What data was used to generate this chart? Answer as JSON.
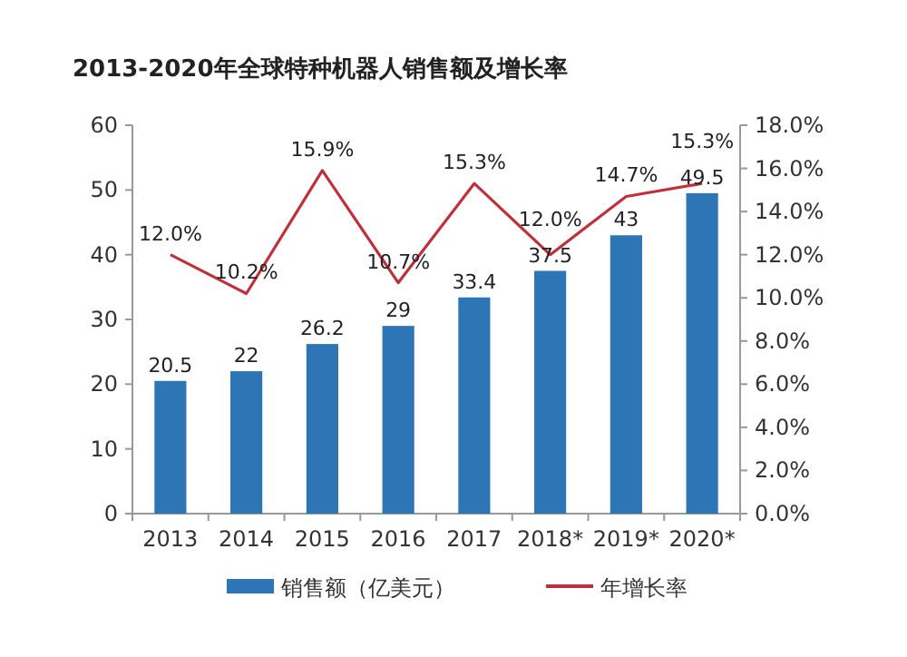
{
  "chart_data": {
    "type": "bar",
    "title": "2013-2020年全球特种机器人销售额及增长率",
    "categories": [
      "2013",
      "2014",
      "2015",
      "2016",
      "2017",
      "2018*",
      "2019*",
      "2020*"
    ],
    "series": [
      {
        "name": "销售额（亿美元）",
        "color": "#2e75b6",
        "values": [
          20.5,
          22,
          26.2,
          29,
          33.4,
          37.5,
          43,
          49.5
        ],
        "value_labels": [
          "20.5",
          "22",
          "26.2",
          "29",
          "33.4",
          "37.5",
          "43",
          "49.5"
        ]
      },
      {
        "name": "年增长率",
        "type": "line",
        "axis": "y2",
        "color": "#c0303a",
        "values": [
          12.0,
          10.2,
          15.9,
          10.7,
          15.3,
          12.0,
          14.7,
          15.3
        ],
        "value_labels": [
          "12.0%",
          "10.2%",
          "15.9%",
          "10.7%",
          "15.3%",
          "12.0%",
          "14.7%",
          "15.3%"
        ]
      }
    ],
    "ylim": [
      0,
      60
    ],
    "yticks": [
      0,
      10,
      20,
      30,
      40,
      50,
      60
    ],
    "y2lim": [
      0,
      18
    ],
    "y2ticks": [
      {
        "value": 0,
        "label": "0.0%"
      },
      {
        "value": 2,
        "label": "2.0%"
      },
      {
        "value": 4,
        "label": "4.0%"
      },
      {
        "value": 6,
        "label": "6.0%"
      },
      {
        "value": 8,
        "label": "8.0%"
      },
      {
        "value": 10,
        "label": "10.0%"
      },
      {
        "value": 12,
        "label": "12.0%"
      },
      {
        "value": 14,
        "label": "14.0%"
      },
      {
        "value": 16,
        "label": "16.0%"
      },
      {
        "value": 18,
        "label": "18.0%"
      }
    ],
    "legend": "bottom"
  }
}
